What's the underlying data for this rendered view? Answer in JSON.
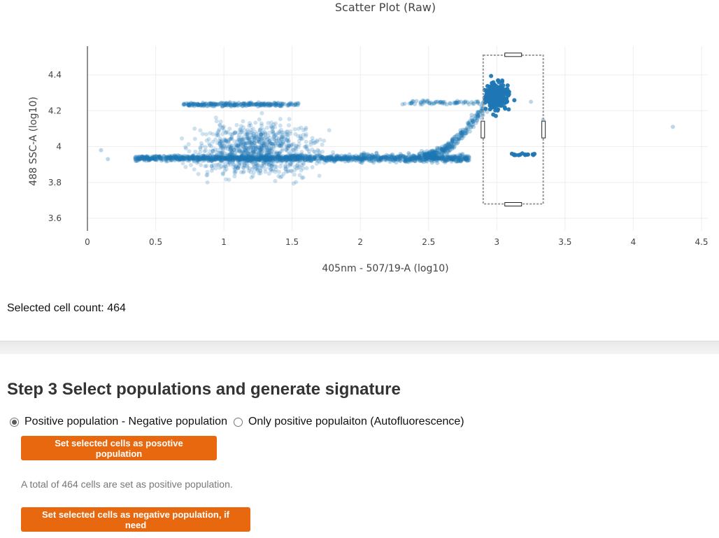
{
  "selected_count_text": "Selected cell count: 464",
  "step3": {
    "title": "Step 3 Select populations and generate signature",
    "radio_positive_negative": "Positive population - Negative population",
    "radio_positive_only": "Only positive populaiton (Autofluorescence)",
    "btn_positive": "Set selected cells as posotive population",
    "positive_info": "A total of 464 cells are set as positive population.",
    "btn_negative": "Set selected cells as negative population, if need"
  },
  "colors": {
    "accent": "#e8680f",
    "point": "#1f77b4"
  },
  "chart_data": {
    "type": "scatter",
    "title": "Scatter Plot (Raw)",
    "xlabel": "405nm - 507/19-A (log10)",
    "ylabel": "488 SSC-A (log10)",
    "xlim": [
      -0.02,
      4.55
    ],
    "ylim": [
      3.52,
      4.52
    ],
    "xticks": [
      0,
      0.5,
      1,
      1.5,
      2,
      2.5,
      3,
      3.5,
      4,
      4.5
    ],
    "yticks": [
      3.6,
      3.8,
      4,
      4.2,
      4.4
    ],
    "ytick_labels": [
      "3.6",
      "3.8",
      "4",
      "4.2",
      "4.4"
    ],
    "grid": true,
    "selection": {
      "x": [
        2.9,
        3.34
      ],
      "y": [
        3.68,
        4.51
      ]
    },
    "clusters": [
      {
        "name": "main band",
        "x": [
          0.35,
          2.8
        ],
        "y_center": 3.935,
        "y_spread": 0.015
      },
      {
        "name": "upper band",
        "x": [
          0.7,
          1.55
        ],
        "y_center": 4.235,
        "y_spread": 0.01
      },
      {
        "name": "diffuse cloud",
        "x": [
          0.5,
          2.0
        ],
        "y": [
          3.7,
          4.4
        ]
      },
      {
        "name": "rising tail",
        "x": [
          2.45,
          2.9
        ],
        "y": [
          3.95,
          4.25
        ]
      },
      {
        "name": "selected",
        "x": [
          2.9,
          3.25
        ],
        "y": [
          3.9,
          4.49
        ]
      }
    ],
    "outliers": [
      [
        0.1,
        3.98
      ],
      [
        0.15,
        3.93
      ],
      [
        4.29,
        4.11
      ],
      [
        3.34,
        4.15
      ],
      [
        3.25,
        4.25
      ]
    ]
  }
}
